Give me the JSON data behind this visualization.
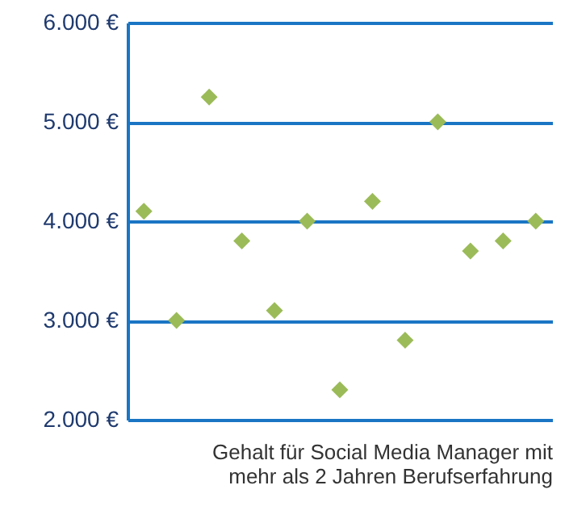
{
  "chart_data": {
    "type": "scatter",
    "xlabel": "Gehalt für Social Media Manager mit\nmehr als 2 Jahren Berufserfahrung",
    "categories": [
      null,
      null,
      null,
      null,
      null,
      null,
      null,
      null,
      null,
      null,
      null,
      null,
      null
    ],
    "values": [
      4100,
      3000,
      5250,
      3800,
      3100,
      4000,
      2300,
      4200,
      2800,
      5000,
      3700,
      3800,
      4000
    ],
    "color": "#9bbb59",
    "marker": "diamond",
    "ylim": [
      2000,
      6000
    ],
    "yticks": [
      {
        "value": 2000,
        "label": "2.000 €"
      },
      {
        "value": 3000,
        "label": "3.000 €"
      },
      {
        "value": 4000,
        "label": "4.000 €"
      },
      {
        "value": 5000,
        "label": "5.000 €"
      },
      {
        "value": 6000,
        "label": "6.000 €"
      }
    ],
    "grid": "y",
    "tick_labels": "y"
  }
}
